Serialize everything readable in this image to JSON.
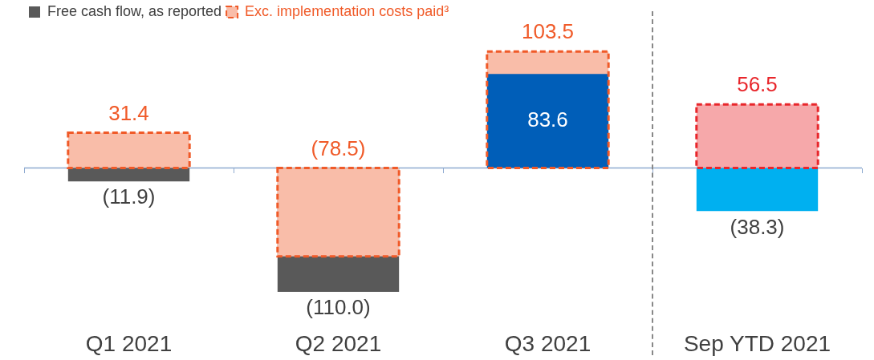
{
  "chart_data": {
    "type": "bar",
    "categories": [
      "Q1 2021",
      "Q2 2021",
      "Q3 2021",
      "Sep YTD 2021"
    ],
    "series": [
      {
        "name": "Free cash flow, as reported",
        "color": "#595959",
        "colors": [
          "#595959",
          "#595959",
          "#005eb8",
          "#00b0f0"
        ],
        "values": [
          -11.9,
          -110.0,
          83.6,
          -38.3
        ],
        "value_labels": [
          "(11.9)",
          "(110.0)",
          "83.6",
          "(38.3)"
        ]
      },
      {
        "name": "Exc. implementation costs paid³",
        "color": "#f05a28",
        "colors": [
          "#f05a28",
          "#f05a28",
          "#f05a28",
          "#e8262b"
        ],
        "values": [
          31.4,
          -78.5,
          103.5,
          56.5
        ],
        "value_labels": [
          "31.4",
          "(78.5)",
          "103.5",
          "56.5"
        ],
        "line_style": "dashed"
      }
    ],
    "ref_lines": [
      {
        "axis": "y",
        "value": 0,
        "color": "#8eaad0"
      }
    ],
    "legend": "top left"
  }
}
